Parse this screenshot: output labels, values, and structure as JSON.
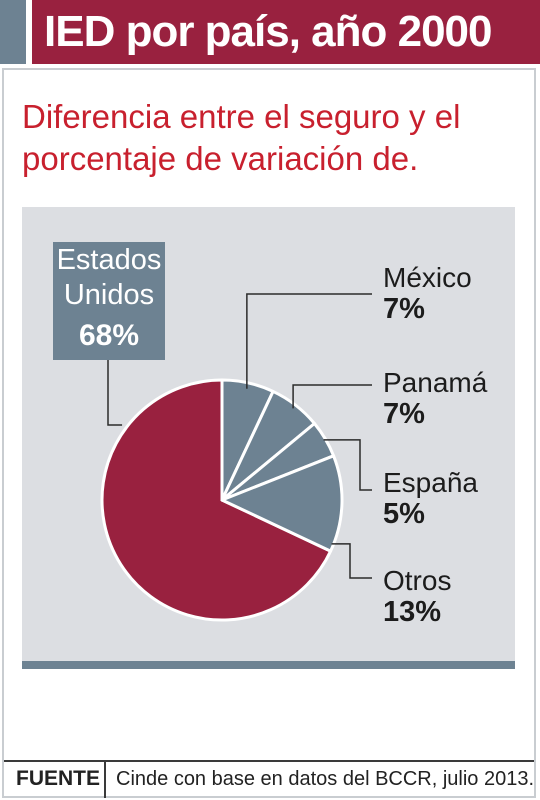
{
  "header": {
    "title": "IED por país, año 2000"
  },
  "subtitle_lines": [
    "Diferencia entre el seguro y el",
    "porcentaje de variación de."
  ],
  "chart_data": {
    "type": "pie",
    "title": "IED por país, año 2000",
    "subtitle": "Diferencia entre el seguro y el porcentaje de variación de.",
    "slices": [
      {
        "label": "Estados Unidos",
        "value": 68,
        "display": "68%",
        "color": "#99213f"
      },
      {
        "label": "México",
        "value": 7,
        "display": "7%",
        "color": "#6d8292"
      },
      {
        "label": "Panamá",
        "value": 7,
        "display": "7%",
        "color": "#6d8292"
      },
      {
        "label": "España",
        "value": 5,
        "display": "5%",
        "color": "#6d8292"
      },
      {
        "label": "Otros",
        "value": 13,
        "display": "13%",
        "color": "#6d8292"
      }
    ]
  },
  "us_label": {
    "line1": "Estados",
    "line2": "Unidos"
  },
  "source": {
    "tag": "FUENTE",
    "text": "Cinde con base en datos del BCCR, julio 2013."
  }
}
